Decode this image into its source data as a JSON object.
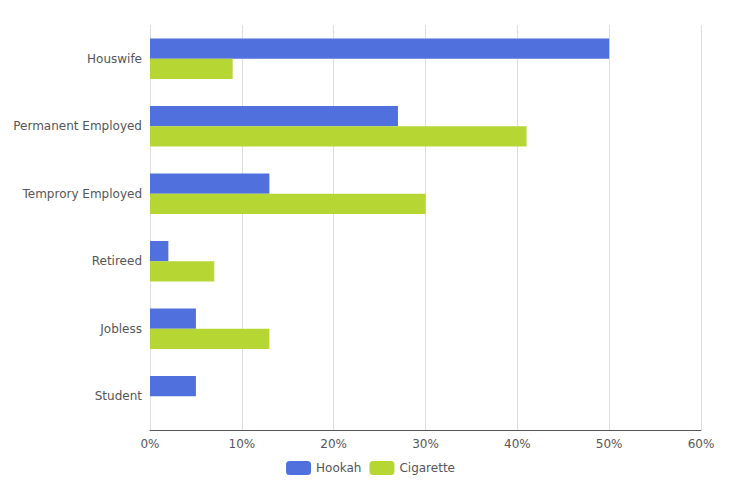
{
  "chart_data": {
    "type": "bar",
    "orientation": "horizontal",
    "categories": [
      "Houswife",
      "Permanent Employed",
      "Temprory Employed",
      "Retireed",
      "Jobless",
      "Student"
    ],
    "series": [
      {
        "name": "Hookah",
        "values": [
          50,
          27,
          13,
          2,
          5,
          5
        ]
      },
      {
        "name": "Cigarette",
        "values": [
          9,
          41,
          30,
          7,
          13,
          0
        ]
      }
    ],
    "xlim": [
      0,
      60
    ],
    "xticks": [
      {
        "value": 0,
        "label": "0%"
      },
      {
        "value": 10,
        "label": "10%"
      },
      {
        "value": 20,
        "label": "20%"
      },
      {
        "value": 30,
        "label": "30%"
      },
      {
        "value": 40,
        "label": "40%"
      },
      {
        "value": 50,
        "label": "50%"
      },
      {
        "value": 60,
        "label": "60%"
      }
    ],
    "grid": true,
    "legend": "bottom"
  }
}
